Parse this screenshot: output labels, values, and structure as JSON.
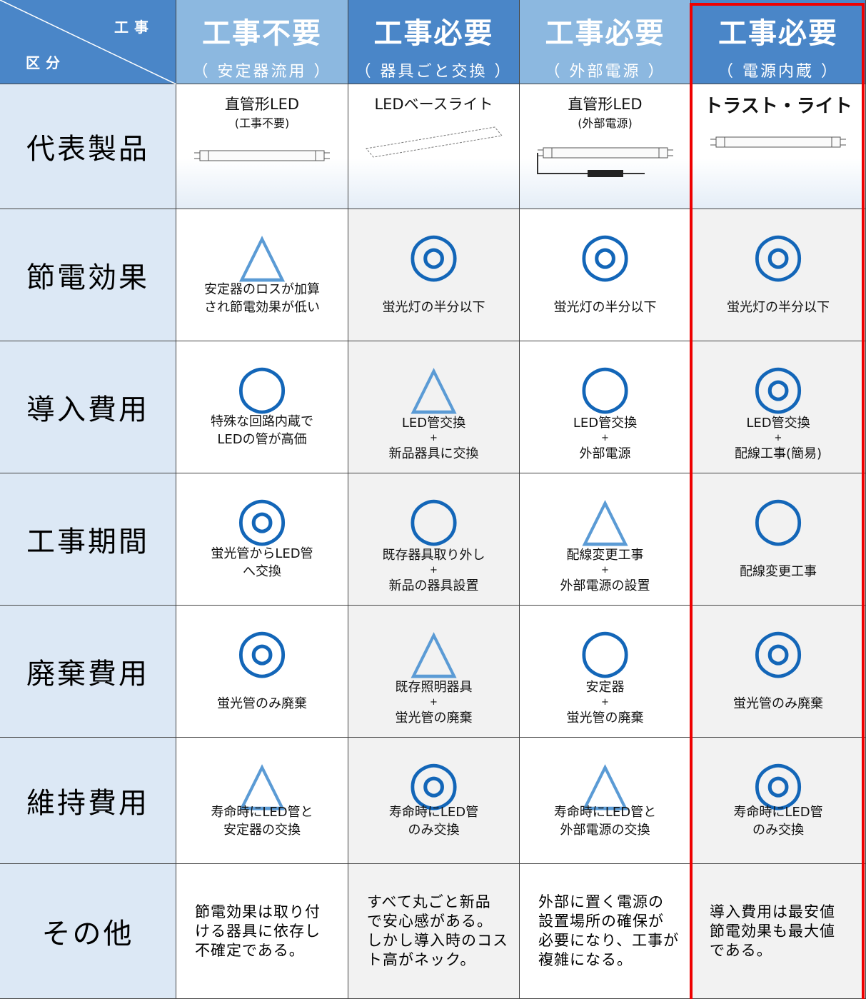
{
  "header": {
    "corner_top": "工事",
    "corner_bottom": "区分",
    "columns": [
      {
        "title": "工事不要",
        "subtitle": "（ 安定器流用 ）"
      },
      {
        "title": "工事必要",
        "subtitle": "（ 器具ごと交換 ）"
      },
      {
        "title": "工事必要",
        "subtitle": "（ 外部電源 ）"
      },
      {
        "title": "工事必要",
        "subtitle": "（ 電源内蔵 ）"
      }
    ]
  },
  "rows": [
    {
      "label": "代表製品",
      "cells": [
        {
          "lines": [
            "直管形LED",
            "(工事不要)"
          ]
        },
        {
          "lines": [
            "LEDベースライト"
          ]
        },
        {
          "lines": [
            "直管形LED",
            "(外部電源)"
          ]
        },
        {
          "lines": [
            "トラスト・ライト"
          ]
        }
      ]
    },
    {
      "label": "節電効果",
      "cells": [
        {
          "symbol": "△",
          "lines": [
            "安定器のロスが加算",
            "され節電効果が低い"
          ]
        },
        {
          "symbol": "◎",
          "lines": [
            "蛍光灯の半分以下"
          ]
        },
        {
          "symbol": "◎",
          "lines": [
            "蛍光灯の半分以下"
          ]
        },
        {
          "symbol": "◎",
          "lines": [
            "蛍光灯の半分以下"
          ]
        }
      ]
    },
    {
      "label": "導入費用",
      "cells": [
        {
          "symbol": "○",
          "lines": [
            "特殊な回路内蔵で",
            "LEDの管が高価"
          ]
        },
        {
          "symbol": "△",
          "lines": [
            "LED管交換",
            "+",
            "新品器具に交換"
          ]
        },
        {
          "symbol": "○",
          "lines": [
            "LED管交換",
            "+",
            "外部電源"
          ]
        },
        {
          "symbol": "◎",
          "lines": [
            "LED管交換",
            "+",
            "配線工事(簡易)"
          ]
        }
      ]
    },
    {
      "label": "工事期間",
      "cells": [
        {
          "symbol": "◎",
          "lines": [
            "蛍光管からLED管",
            "へ交換"
          ]
        },
        {
          "symbol": "○",
          "lines": [
            "既存器具取り外し",
            "+",
            "新品の器具設置"
          ]
        },
        {
          "symbol": "△",
          "lines": [
            "配線変更工事",
            "+",
            "外部電源の設置"
          ]
        },
        {
          "symbol": "○",
          "lines": [
            "配線変更工事"
          ]
        }
      ]
    },
    {
      "label": "廃棄費用",
      "cells": [
        {
          "symbol": "◎",
          "lines": [
            "蛍光管のみ廃棄"
          ]
        },
        {
          "symbol": "△",
          "lines": [
            "既存照明器具",
            "+",
            "蛍光管の廃棄"
          ]
        },
        {
          "symbol": "○",
          "lines": [
            "安定器",
            "+",
            "蛍光管の廃棄"
          ]
        },
        {
          "symbol": "◎",
          "lines": [
            "蛍光管のみ廃棄"
          ]
        }
      ]
    },
    {
      "label": "維持費用",
      "cells": [
        {
          "symbol": "△",
          "lines": [
            "寿命時にLED管と",
            "安定器の交換"
          ]
        },
        {
          "symbol": "◎",
          "lines": [
            "寿命時にLED管",
            "のみ交換"
          ]
        },
        {
          "symbol": "△",
          "lines": [
            "寿命時にLED管と",
            "外部電源の交換"
          ]
        },
        {
          "symbol": "◎",
          "lines": [
            "寿命時にLED管",
            "のみ交換"
          ]
        }
      ]
    },
    {
      "label": "その他",
      "cells": [
        {
          "lines": [
            "節電効果は取り付",
            "ける器具に依存し",
            "不確定である。"
          ]
        },
        {
          "lines": [
            "すべて丸ごと新品",
            "で安心感がある。",
            "しかし導入時のコス",
            "ト高がネック。"
          ]
        },
        {
          "lines": [
            "外部に置く電源の",
            "設置場所の確保が",
            "必要になり、工事が",
            "複雑になる。"
          ]
        },
        {
          "lines": [
            "導入費用は最安値",
            "節電効果も最大値",
            "である。"
          ]
        }
      ]
    }
  ]
}
